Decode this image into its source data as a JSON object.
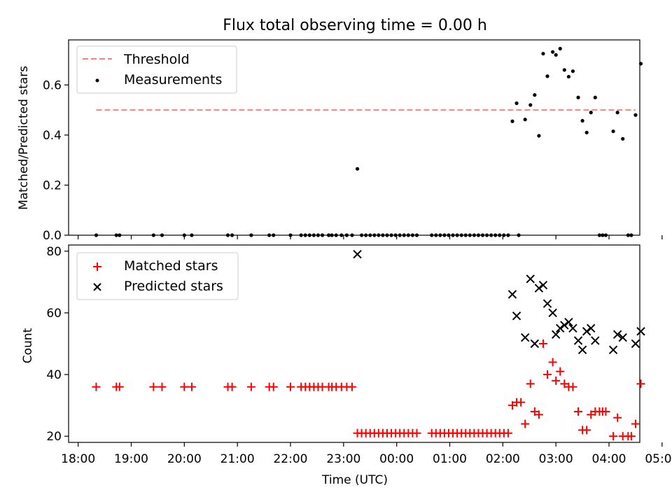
{
  "chart_data": [
    {
      "type": "scatter",
      "title": "Flux total observing time = 0.00 h",
      "ylabel": "Matched/Predicted stars",
      "xlabel": "",
      "xlim": [
        -0.18,
        10.58
      ],
      "ylim": [
        0,
        0.78
      ],
      "x_unit": "hours since 18:00 UTC",
      "yticks": [
        0.0,
        0.2,
        0.4,
        0.6
      ],
      "ytick_labels": [
        "0.0",
        "0.2",
        "0.4",
        "0.6"
      ],
      "legend": {
        "placement": "top-left",
        "entries": [
          "Threshold",
          "Measurements"
        ]
      },
      "grid": false,
      "threshold": {
        "name": "Threshold",
        "x": [
          0.34,
          10.5
        ],
        "y": 0.5,
        "color": "#ff7f7f",
        "style": "dashed"
      },
      "series": [
        {
          "name": "Measurements",
          "color": "#000000",
          "marker": "dot",
          "points": [
            [
              0.34,
              0
            ],
            [
              0.72,
              0
            ],
            [
              0.78,
              0
            ],
            [
              1.42,
              0
            ],
            [
              1.58,
              0
            ],
            [
              2.0,
              0
            ],
            [
              2.14,
              0
            ],
            [
              2.82,
              0
            ],
            [
              2.9,
              0
            ],
            [
              3.26,
              0
            ],
            [
              3.6,
              0
            ],
            [
              3.68,
              0
            ],
            [
              4.0,
              0
            ],
            [
              4.2,
              0
            ],
            [
              4.28,
              0
            ],
            [
              4.36,
              0
            ],
            [
              4.44,
              0
            ],
            [
              4.52,
              0
            ],
            [
              4.6,
              0
            ],
            [
              4.72,
              0
            ],
            [
              4.78,
              0
            ],
            [
              4.86,
              0
            ],
            [
              4.96,
              0
            ],
            [
              5.06,
              0
            ],
            [
              5.16,
              0
            ],
            [
              5.26,
              0.265
            ],
            [
              5.34,
              0
            ],
            [
              5.42,
              0
            ],
            [
              5.5,
              0
            ],
            [
              5.58,
              0
            ],
            [
              5.66,
              0
            ],
            [
              5.74,
              0
            ],
            [
              5.82,
              0
            ],
            [
              5.9,
              0
            ],
            [
              5.98,
              0
            ],
            [
              6.06,
              0
            ],
            [
              6.14,
              0
            ],
            [
              6.22,
              0
            ],
            [
              6.3,
              0
            ],
            [
              6.38,
              0
            ],
            [
              6.66,
              0
            ],
            [
              6.74,
              0
            ],
            [
              6.82,
              0
            ],
            [
              6.9,
              0
            ],
            [
              6.98,
              0
            ],
            [
              7.06,
              0
            ],
            [
              7.14,
              0
            ],
            [
              7.22,
              0
            ],
            [
              7.3,
              0
            ],
            [
              7.38,
              0
            ],
            [
              7.46,
              0
            ],
            [
              7.54,
              0
            ],
            [
              7.62,
              0
            ],
            [
              7.7,
              0
            ],
            [
              7.78,
              0
            ],
            [
              7.86,
              0
            ],
            [
              7.94,
              0
            ],
            [
              8.02,
              0
            ],
            [
              8.1,
              0
            ],
            [
              8.3,
              0
            ],
            [
              8.18,
              0.455
            ],
            [
              8.26,
              0.527
            ],
            [
              8.42,
              0.462
            ],
            [
              8.52,
              0.52
            ],
            [
              8.6,
              0.56
            ],
            [
              8.68,
              0.397
            ],
            [
              8.76,
              0.725
            ],
            [
              8.84,
              0.635
            ],
            [
              8.94,
              0.732
            ],
            [
              9.0,
              0.72
            ],
            [
              9.08,
              0.745
            ],
            [
              9.16,
              0.66
            ],
            [
              9.24,
              0.633
            ],
            [
              9.32,
              0.655
            ],
            [
              9.42,
              0.55
            ],
            [
              9.5,
              0.457
            ],
            [
              9.58,
              0.41
            ],
            [
              9.66,
              0.49
            ],
            [
              9.74,
              0.55
            ],
            [
              9.82,
              0
            ],
            [
              9.88,
              0
            ],
            [
              9.94,
              0
            ],
            [
              10.08,
              0.415
            ],
            [
              10.16,
              0.49
            ],
            [
              10.26,
              0.385
            ],
            [
              10.36,
              0
            ],
            [
              10.42,
              0
            ],
            [
              10.5,
              0.48
            ],
            [
              10.6,
              0.685
            ]
          ]
        }
      ]
    },
    {
      "type": "scatter",
      "title": "",
      "ylabel": "Count",
      "xlabel": "Time (UTC)",
      "xlim": [
        -0.18,
        10.58
      ],
      "ylim": [
        18,
        82
      ],
      "x_unit": "hours since 18:00 UTC",
      "xticks": [
        0,
        1,
        2,
        3,
        4,
        5,
        6,
        7,
        8,
        9,
        10,
        11
      ],
      "xtick_labels": [
        "18:00",
        "19:00",
        "20:00",
        "21:00",
        "22:00",
        "23:00",
        "00:00",
        "01:00",
        "02:00",
        "03:00",
        "04:00",
        "05:00"
      ],
      "yticks": [
        20,
        40,
        60,
        80
      ],
      "ytick_labels": [
        "20",
        "40",
        "60",
        "80"
      ],
      "legend": {
        "placement": "top-left",
        "entries": [
          "Matched stars",
          "Predicted stars"
        ]
      },
      "grid": false,
      "series": [
        {
          "name": "Matched stars",
          "color": "#ff0000",
          "marker": "plus",
          "points": [
            [
              0.34,
              36
            ],
            [
              0.72,
              36
            ],
            [
              0.78,
              36
            ],
            [
              1.42,
              36
            ],
            [
              1.58,
              36
            ],
            [
              2.0,
              36
            ],
            [
              2.14,
              36
            ],
            [
              2.82,
              36
            ],
            [
              2.9,
              36
            ],
            [
              3.26,
              36
            ],
            [
              3.6,
              36
            ],
            [
              3.68,
              36
            ],
            [
              4.0,
              36
            ],
            [
              4.2,
              36
            ],
            [
              4.28,
              36
            ],
            [
              4.36,
              36
            ],
            [
              4.44,
              36
            ],
            [
              4.52,
              36
            ],
            [
              4.6,
              36
            ],
            [
              4.72,
              36
            ],
            [
              4.78,
              36
            ],
            [
              4.86,
              36
            ],
            [
              4.96,
              36
            ],
            [
              5.06,
              36
            ],
            [
              5.16,
              36
            ],
            [
              5.26,
              21
            ],
            [
              5.34,
              21
            ],
            [
              5.42,
              21
            ],
            [
              5.5,
              21
            ],
            [
              5.58,
              21
            ],
            [
              5.66,
              21
            ],
            [
              5.74,
              21
            ],
            [
              5.82,
              21
            ],
            [
              5.9,
              21
            ],
            [
              5.98,
              21
            ],
            [
              6.06,
              21
            ],
            [
              6.14,
              21
            ],
            [
              6.22,
              21
            ],
            [
              6.3,
              21
            ],
            [
              6.38,
              21
            ],
            [
              6.66,
              21
            ],
            [
              6.74,
              21
            ],
            [
              6.82,
              21
            ],
            [
              6.9,
              21
            ],
            [
              6.98,
              21
            ],
            [
              7.06,
              21
            ],
            [
              7.14,
              21
            ],
            [
              7.22,
              21
            ],
            [
              7.3,
              21
            ],
            [
              7.38,
              21
            ],
            [
              7.46,
              21
            ],
            [
              7.54,
              21
            ],
            [
              7.62,
              21
            ],
            [
              7.7,
              21
            ],
            [
              7.78,
              21
            ],
            [
              7.86,
              21
            ],
            [
              7.94,
              21
            ],
            [
              8.02,
              21
            ],
            [
              8.1,
              21
            ],
            [
              8.18,
              30
            ],
            [
              8.26,
              31
            ],
            [
              8.34,
              31
            ],
            [
              8.42,
              24
            ],
            [
              8.52,
              37
            ],
            [
              8.6,
              28
            ],
            [
              8.68,
              27
            ],
            [
              8.76,
              50
            ],
            [
              8.84,
              40
            ],
            [
              8.94,
              44
            ],
            [
              9.0,
              38
            ],
            [
              9.08,
              41
            ],
            [
              9.16,
              37
            ],
            [
              9.24,
              36
            ],
            [
              9.32,
              36
            ],
            [
              9.42,
              28
            ],
            [
              9.5,
              22
            ],
            [
              9.58,
              22
            ],
            [
              9.66,
              27
            ],
            [
              9.74,
              28
            ],
            [
              9.82,
              28
            ],
            [
              9.88,
              28
            ],
            [
              9.94,
              28
            ],
            [
              10.08,
              20
            ],
            [
              10.16,
              26
            ],
            [
              10.26,
              20
            ],
            [
              10.36,
              20
            ],
            [
              10.42,
              20
            ],
            [
              10.5,
              24
            ],
            [
              10.6,
              37
            ]
          ]
        },
        {
          "name": "Predicted stars",
          "color": "#000000",
          "marker": "x",
          "points": [
            [
              5.26,
              79
            ],
            [
              8.18,
              66
            ],
            [
              8.26,
              59
            ],
            [
              8.42,
              52
            ],
            [
              8.52,
              71
            ],
            [
              8.6,
              50
            ],
            [
              8.68,
              68
            ],
            [
              8.76,
              69
            ],
            [
              8.84,
              63
            ],
            [
              8.94,
              60
            ],
            [
              9.0,
              53
            ],
            [
              9.08,
              55
            ],
            [
              9.16,
              56
            ],
            [
              9.24,
              57
            ],
            [
              9.32,
              55
            ],
            [
              9.42,
              51
            ],
            [
              9.5,
              48
            ],
            [
              9.58,
              54
            ],
            [
              9.66,
              55
            ],
            [
              9.74,
              51
            ],
            [
              10.08,
              48
            ],
            [
              10.16,
              53
            ],
            [
              10.26,
              52
            ],
            [
              10.5,
              50
            ],
            [
              10.6,
              54
            ]
          ]
        }
      ]
    }
  ]
}
